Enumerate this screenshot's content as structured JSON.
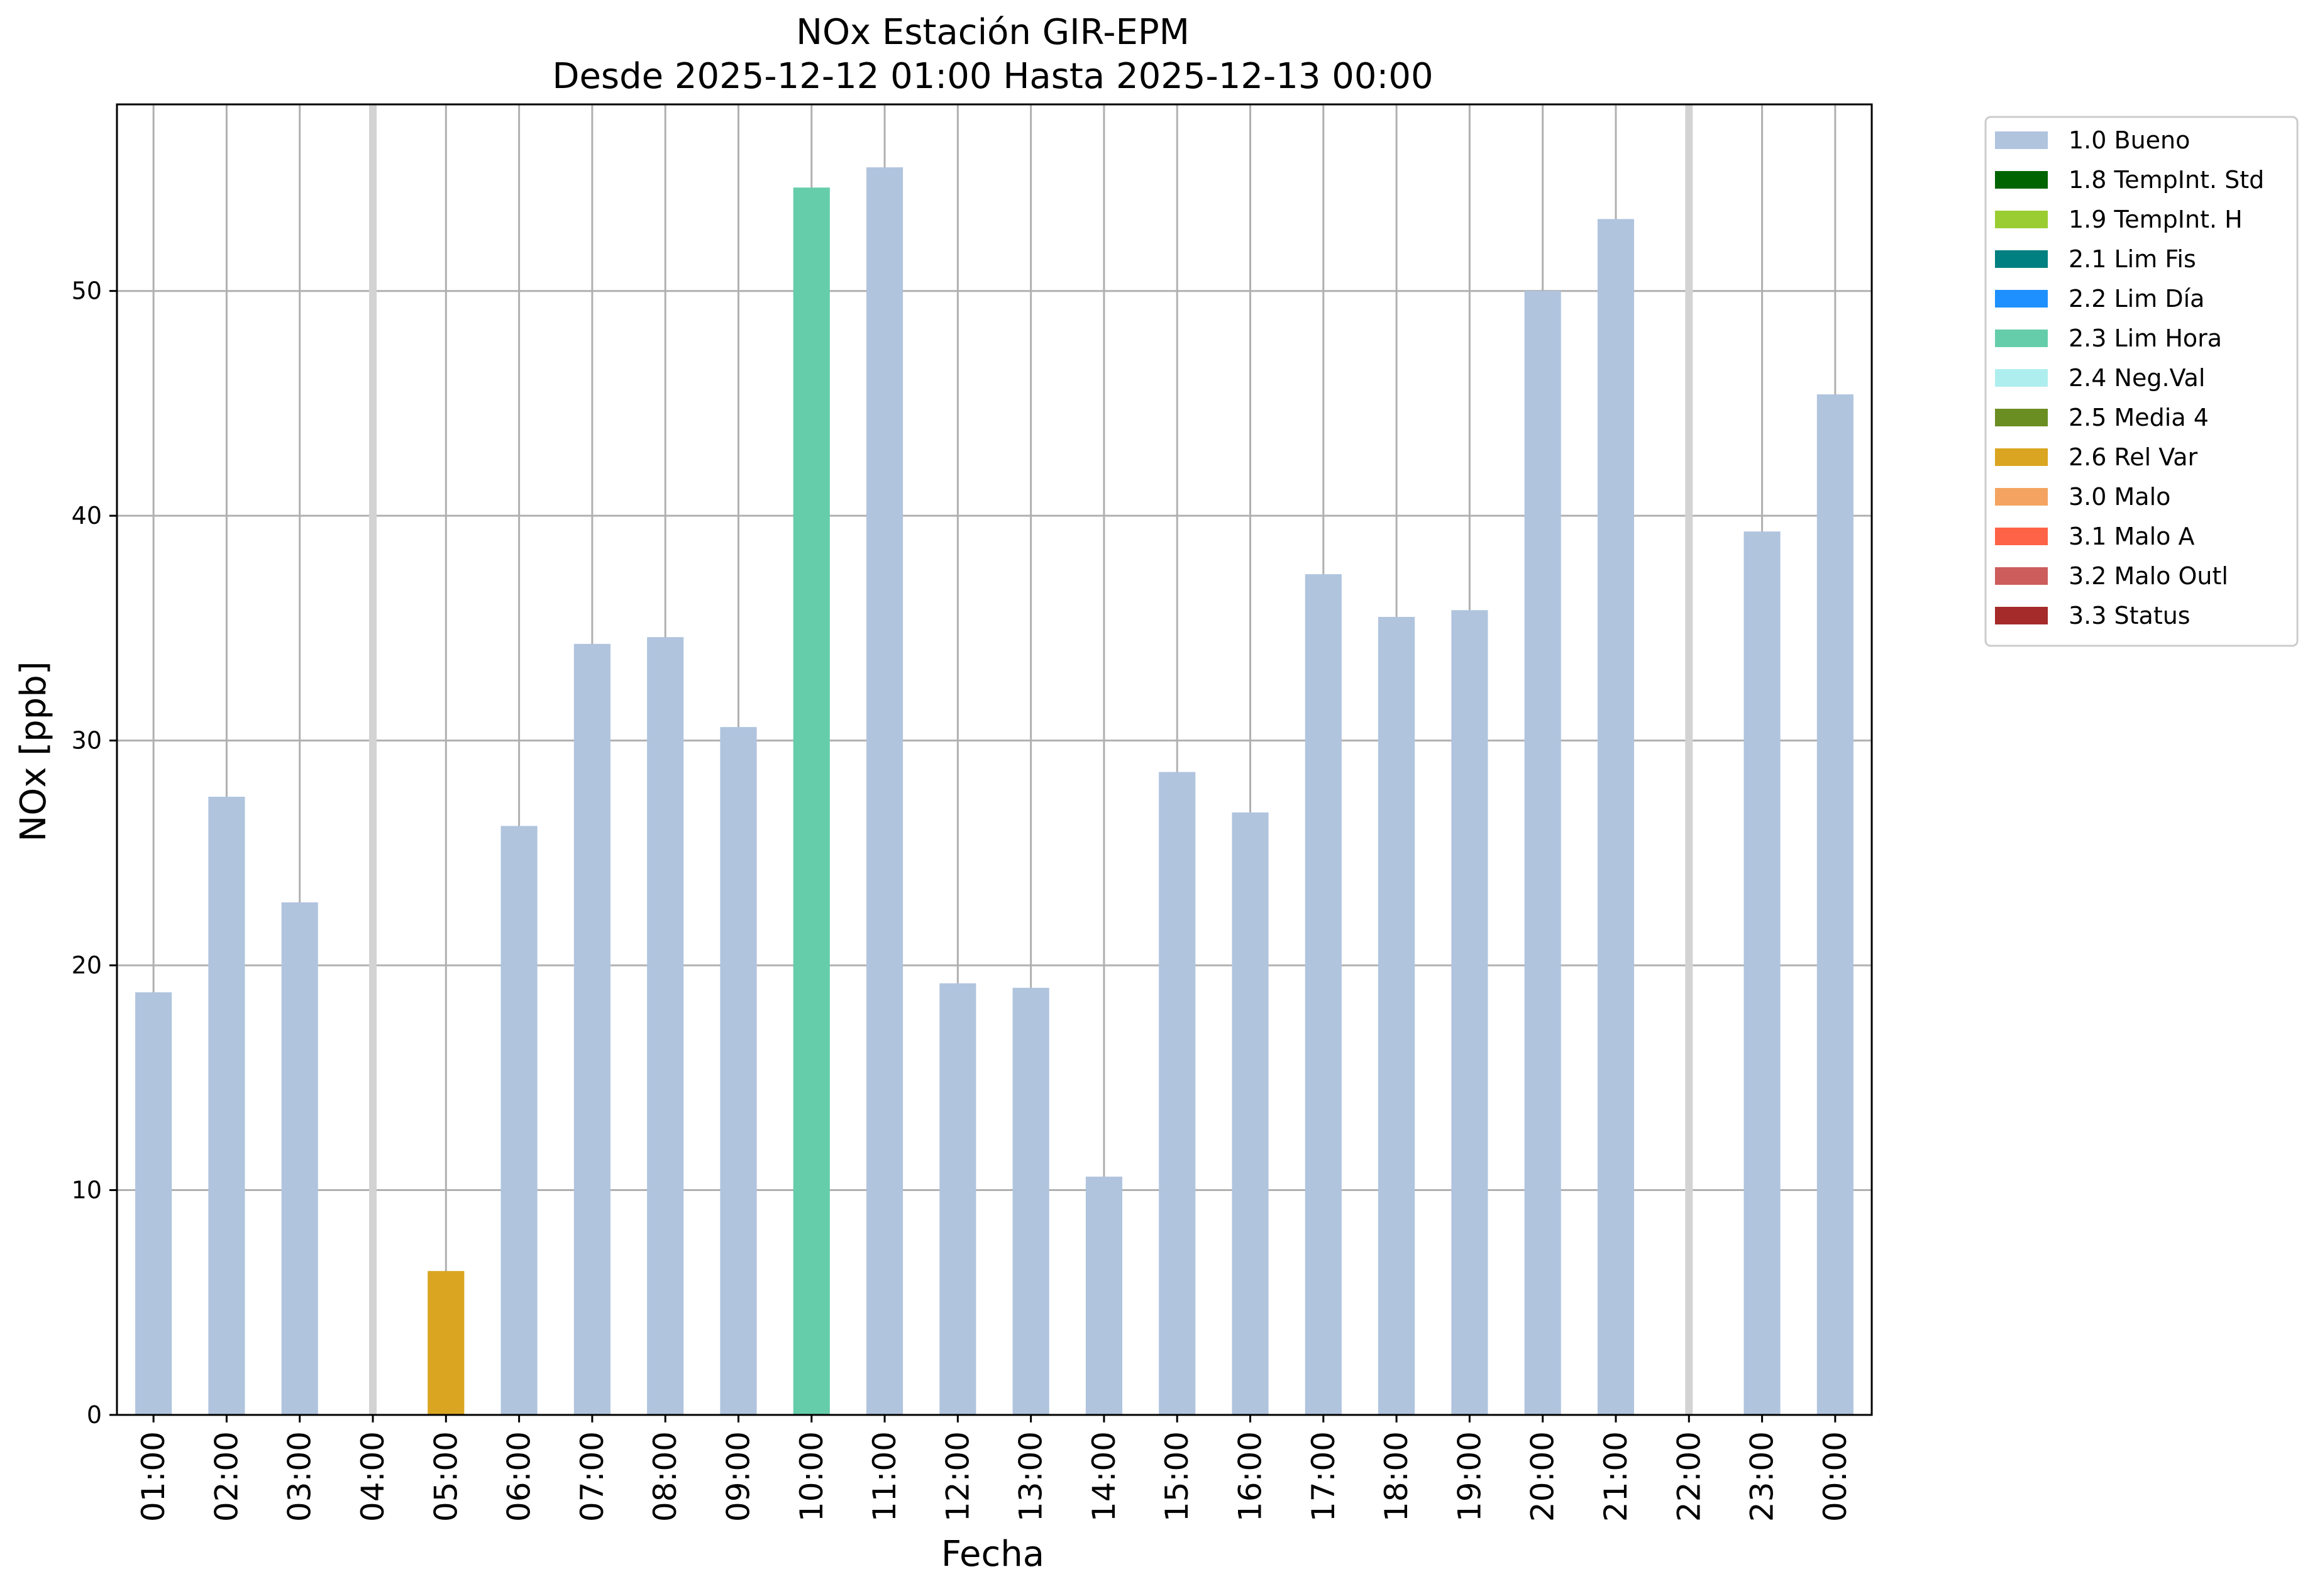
{
  "chart_data": {
    "type": "bar",
    "title": "NOx Estación GIR-EPM",
    "subtitle": "Desde 2025-12-12 01:00 Hasta 2025-12-13 00:00",
    "xlabel": "Fecha",
    "ylabel": "NOx [ppb]",
    "ylim": [
      0,
      58.3
    ],
    "yticks": [
      0,
      10,
      20,
      30,
      40,
      50
    ],
    "grid": true,
    "legend_position": "outside-top-right",
    "categories": [
      "01:00",
      "02:00",
      "03:00",
      "04:00",
      "05:00",
      "06:00",
      "07:00",
      "08:00",
      "09:00",
      "10:00",
      "11:00",
      "12:00",
      "13:00",
      "14:00",
      "15:00",
      "16:00",
      "17:00",
      "18:00",
      "19:00",
      "20:00",
      "21:00",
      "22:00",
      "23:00",
      "00:00"
    ],
    "values": [
      18.8,
      27.5,
      22.8,
      null,
      6.4,
      26.2,
      34.3,
      34.6,
      30.6,
      54.6,
      55.5,
      19.2,
      19.0,
      10.6,
      28.6,
      26.8,
      37.4,
      35.5,
      35.8,
      50.0,
      53.2,
      null,
      39.3,
      45.4
    ],
    "flags": [
      "1.0 Bueno",
      "1.0 Bueno",
      "1.0 Bueno",
      null,
      "2.6 Rel Var",
      "1.0 Bueno",
      "1.0 Bueno",
      "1.0 Bueno",
      "1.0 Bueno",
      "2.3 Lim Hora",
      "1.0 Bueno",
      "1.0 Bueno",
      "1.0 Bueno",
      "1.0 Bueno",
      "1.0 Bueno",
      "1.0 Bueno",
      "1.0 Bueno",
      "1.0 Bueno",
      "1.0 Bueno",
      "1.0 Bueno",
      "1.0 Bueno",
      null,
      "1.0 Bueno",
      "1.0 Bueno"
    ],
    "missing_marker_color": "#d3d3d3",
    "legend": [
      {
        "label": "1.0 Bueno",
        "color": "#b0c4de"
      },
      {
        "label": "1.8 TempInt. Std",
        "color": "#006400"
      },
      {
        "label": "1.9 TempInt. H",
        "color": "#9acd32"
      },
      {
        "label": "2.1 Lim Fis",
        "color": "#008080"
      },
      {
        "label": "2.2 Lim Día",
        "color": "#1e90ff"
      },
      {
        "label": "2.3 Lim Hora",
        "color": "#66cdaa"
      },
      {
        "label": "2.4 Neg.Val",
        "color": "#afeeee"
      },
      {
        "label": "2.5 Media 4",
        "color": "#6b8e23"
      },
      {
        "label": "2.6 Rel Var",
        "color": "#daa520"
      },
      {
        "label": "3.0 Malo",
        "color": "#f4a460"
      },
      {
        "label": "3.1 Malo A",
        "color": "#ff6347"
      },
      {
        "label": "3.2 Malo Outl",
        "color": "#cd5c5c"
      },
      {
        "label": "3.3 Status",
        "color": "#a52a2a"
      }
    ]
  }
}
